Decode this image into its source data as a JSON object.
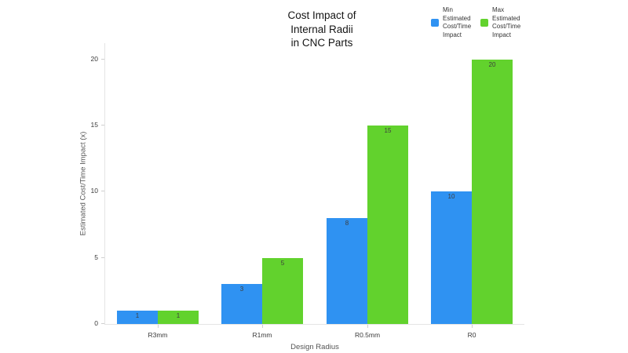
{
  "chart": {
    "title": "Cost Impact of\nInternal Radii\nin CNC Parts",
    "xlabel": "Design Radius",
    "ylabel": "Estimated Cost/Time Impact (x)"
  },
  "legend": {
    "items": [
      {
        "label": "Min\nEstimated\nCost/Time\nImpact",
        "color": "#2f92f2"
      },
      {
        "label": "Max\nEstimated\nCost/Time\nImpact",
        "color": "#62d22d"
      }
    ]
  },
  "chart_data": {
    "type": "bar",
    "title": "Cost Impact of Internal Radii in CNC Parts",
    "categories": [
      "R3mm",
      "R1mm",
      "R0.5mm",
      "R0"
    ],
    "series": [
      {
        "name": "Min Estimated Cost/Time Impact",
        "color": "#2f92f2",
        "values": [
          1,
          3,
          8,
          10
        ]
      },
      {
        "name": "Max Estimated Cost/Time Impact",
        "color": "#62d22d",
        "values": [
          1,
          5,
          15,
          20
        ]
      }
    ],
    "xlabel": "Design Radius",
    "ylabel": "Estimated Cost/Time Impact (x)",
    "ylim": [
      0,
      20
    ],
    "yticks": [
      0,
      5,
      10,
      15,
      20
    ],
    "grid": false,
    "legend_position": "top-right",
    "bar_value_labels": true
  }
}
